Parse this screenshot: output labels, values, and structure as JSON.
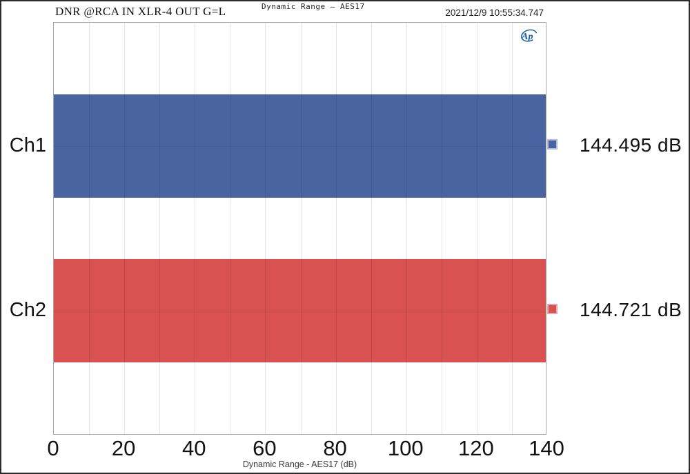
{
  "header": {
    "annotation": "DNR @RCA IN XLR-4 OUT G=L",
    "title": "Dynamic Range — AES17",
    "timestamp": "2021/12/9 10:55:34.747",
    "logo_text": "Ap"
  },
  "chart_data": {
    "type": "bar",
    "orientation": "horizontal",
    "title": "Dynamic Range — AES17",
    "xlabel": "Dynamic Range - AES17 (dB)",
    "categories": [
      "Ch1",
      "Ch2"
    ],
    "values": [
      144.495,
      144.721
    ],
    "value_labels": [
      "144.495 dB",
      "144.721 dB"
    ],
    "units": "dB",
    "xlim": [
      0,
      140
    ],
    "xticks": [
      0,
      20,
      40,
      60,
      80,
      100,
      120,
      140
    ],
    "minor_grid_step": 10,
    "bars_clipped_at_xmax": true,
    "series_colors": [
      "#4A64A2",
      "#D95151"
    ],
    "marker_border_colors": [
      "#AEB9D6",
      "#E9A6A6"
    ],
    "grid_on": true,
    "legend_position": "right",
    "colors": {
      "plot_border": "#A6A6A6",
      "outer_border": "#2B2B2B",
      "gridline": "#E6E6E6",
      "logo_blue": "#1A5DA6",
      "text": "#1A1A1A"
    }
  }
}
